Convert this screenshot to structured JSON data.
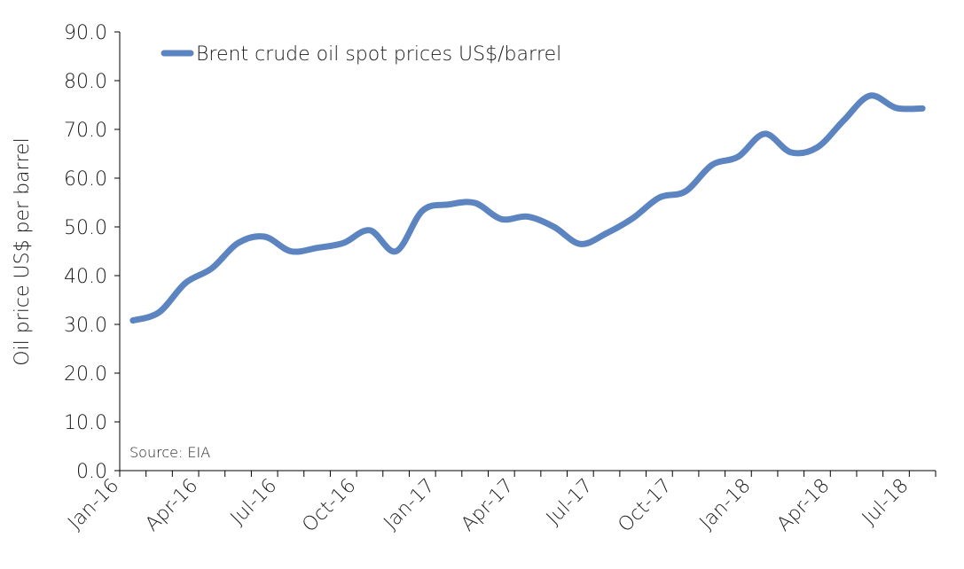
{
  "chart_data": {
    "type": "line",
    "ylabel": "Oil price US$ per barrel",
    "ylim": [
      0,
      90
    ],
    "yticks": [
      "0.0",
      "10.0",
      "20.0",
      "30.0",
      "40.0",
      "50.0",
      "60.0",
      "70.0",
      "80.0",
      "90.0"
    ],
    "xticks": [
      "Jan-16",
      "Apr-16",
      "Jul-16",
      "Oct-16",
      "Jan-17",
      "Apr-17",
      "Jul-17",
      "Oct-17",
      "Jan-18",
      "Apr-18",
      "Jul-18"
    ],
    "x": [
      "Jan-16",
      "Feb-16",
      "Mar-16",
      "Apr-16",
      "May-16",
      "Jun-16",
      "Jul-16",
      "Aug-16",
      "Sep-16",
      "Oct-16",
      "Nov-16",
      "Dec-16",
      "Jan-17",
      "Feb-17",
      "Mar-17",
      "Apr-17",
      "May-17",
      "Jun-17",
      "Jul-17",
      "Aug-17",
      "Sep-17",
      "Oct-17",
      "Nov-17",
      "Dec-17",
      "Jan-18",
      "Feb-18",
      "Mar-18",
      "Apr-18",
      "May-18",
      "Jun-18",
      "Jul-18"
    ],
    "series": [
      {
        "name": "Brent crude oil spot prices US$/barrel",
        "color": "#5b84c0",
        "values": [
          30.8,
          32.5,
          38.5,
          41.5,
          46.7,
          48.0,
          45.0,
          45.7,
          46.7,
          49.3,
          45.0,
          53.3,
          54.6,
          54.9,
          51.6,
          52.1,
          50.0,
          46.5,
          48.7,
          51.8,
          56.0,
          57.3,
          62.7,
          64.4,
          69.1,
          65.3,
          66.3,
          71.8,
          76.9,
          74.4,
          74.3
        ]
      }
    ],
    "legend_position": "top-left",
    "grid": false,
    "annotation": "Source: EIA"
  }
}
